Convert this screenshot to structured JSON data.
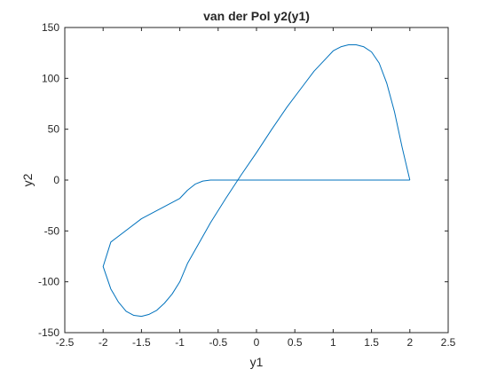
{
  "chart_data": {
    "type": "line",
    "title": "van der Pol y2(y1)",
    "xlabel": "y1",
    "ylabel": "y2",
    "xlim": [
      -2.5,
      2.5
    ],
    "ylim": [
      -150,
      150
    ],
    "xticks": [
      -2.5,
      -2,
      -1.5,
      -1,
      -0.5,
      0,
      0.5,
      1,
      1.5,
      2,
      2.5
    ],
    "yticks": [
      -150,
      -100,
      -50,
      0,
      50,
      100,
      150
    ],
    "xtick_labels": [
      "-2.5",
      "-2",
      "-1.5",
      "-1",
      "-0.5",
      "0",
      "0.5",
      "1",
      "1.5",
      "2",
      "2.5"
    ],
    "ytick_labels": [
      "-150",
      "-100",
      "-50",
      "0",
      "50",
      "100",
      "150"
    ],
    "grid": false,
    "line_color": "#0072BD",
    "series": [
      {
        "x": [
          2.0,
          1.9,
          1.8,
          1.7,
          1.6,
          1.5,
          1.4,
          1.3,
          1.2,
          1.1,
          1.0,
          0.9,
          0.75,
          0.6,
          0.4,
          0.2,
          0.0,
          -0.2,
          -0.4,
          -0.6,
          -0.75,
          -0.9,
          -1.0,
          -1.1,
          -1.2,
          -1.3,
          -1.4,
          -1.5,
          -1.6,
          -1.7,
          -1.8,
          -1.9,
          -2.0,
          -1.9,
          -1.5,
          -1.0,
          -0.9,
          -0.8,
          -0.7,
          -0.6,
          -0.5,
          -0.3,
          -0.1,
          0.0,
          0.2,
          0.4,
          0.6,
          0.75,
          0.9,
          1.0,
          1.1,
          1.2,
          1.3,
          1.4,
          1.5,
          1.6,
          1.7,
          1.8,
          1.9,
          2.0
        ],
        "y": [
          0,
          32,
          67,
          95,
          115,
          126,
          131,
          133,
          133,
          131,
          127,
          119,
          107,
          92,
          72,
          50,
          27,
          5,
          -18,
          -42,
          -62,
          -82,
          -100,
          -112,
          -121,
          -128,
          -132,
          -134,
          -133,
          -129,
          -120,
          -107,
          -85,
          -61,
          -38,
          -18,
          -10,
          -4,
          -1,
          0,
          0,
          0,
          0,
          0,
          0,
          0,
          0,
          0,
          0,
          0,
          0,
          0,
          0,
          0,
          0,
          0,
          0,
          0,
          0,
          0
        ]
      }
    ]
  }
}
